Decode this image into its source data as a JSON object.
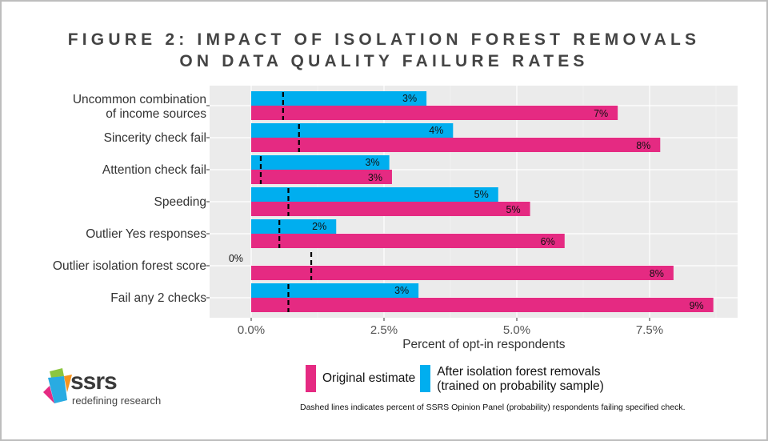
{
  "title_line1": "FIGURE 2: IMPACT OF ISOLATION FOREST REMOVALS",
  "title_line2": "ON DATA QUALITY FAILURE RATES",
  "colors": {
    "original": "#E52A82",
    "after": "#00AEEF",
    "panel": "#EBEBEB",
    "dash": "#000000"
  },
  "logo": {
    "name": "ssrs",
    "tagline": "redefining research"
  },
  "legend": {
    "original": "Original estimate",
    "after_line1": "After isolation forest removals",
    "after_line2": "(trained on probability sample)"
  },
  "note": "Dashed lines indicates percent of SSRS Opinion Panel (probability) respondents failing specified check.",
  "chart_data": {
    "type": "bar",
    "orientation": "horizontal",
    "xlabel": "Percent of opt-in respondents",
    "xlim": [
      -0.8,
      9.1
    ],
    "xticks": [
      0,
      2.5,
      5,
      7.5
    ],
    "xtick_labels": [
      "0.0%",
      "2.5%",
      "5.0%",
      "7.5%"
    ],
    "categories": [
      [
        "Uncommon combination",
        "of income sources"
      ],
      [
        "Sincerity check fail"
      ],
      [
        "Attention check fail"
      ],
      [
        "Speeding"
      ],
      [
        "Outlier Yes responses"
      ],
      [
        "Outlier isolation forest score"
      ],
      [
        "Fail any 2 checks"
      ]
    ],
    "series": [
      {
        "name": "After isolation forest removals",
        "values": [
          3.3,
          3.8,
          2.6,
          4.65,
          1.6,
          0,
          3.15
        ],
        "labels": [
          "3%",
          "4%",
          "3%",
          "5%",
          "2%",
          "0%",
          "3%"
        ]
      },
      {
        "name": "Original estimate",
        "values": [
          6.9,
          7.7,
          2.65,
          5.25,
          5.9,
          7.95,
          8.7
        ],
        "labels": [
          "7%",
          "8%",
          "3%",
          "5%",
          "6%",
          "8%",
          "9%"
        ]
      }
    ],
    "reference_dashed": {
      "name": "SSRS Opinion Panel (probability)",
      "values": [
        0.6,
        0.9,
        0.18,
        0.7,
        0.53,
        1.13,
        0.7
      ]
    },
    "grid": true
  }
}
